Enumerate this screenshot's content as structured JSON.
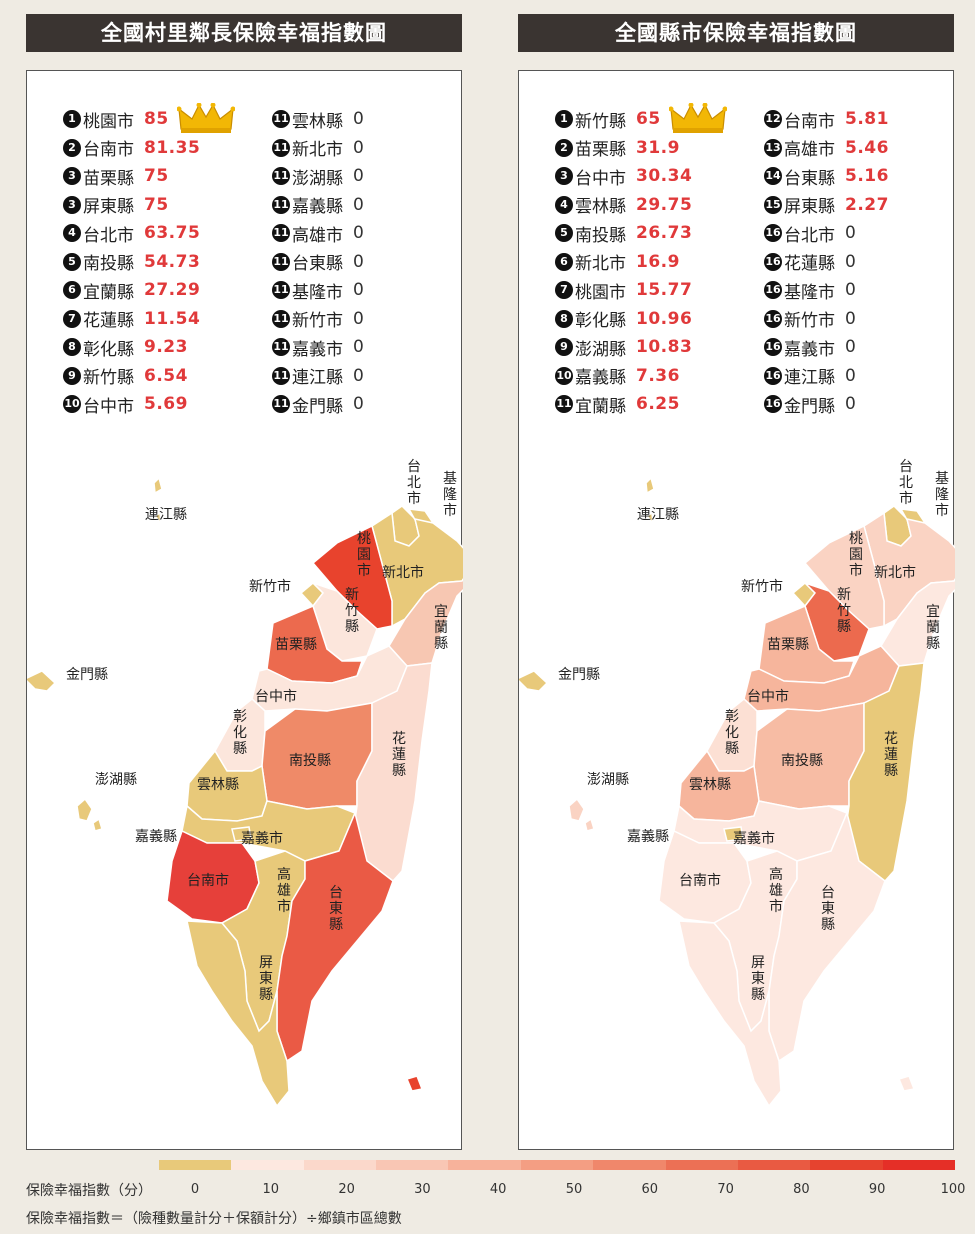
{
  "left": {
    "title": "全國村里鄰長保險幸福指數圖",
    "col1": [
      {
        "rank": "1",
        "name": "桃園市",
        "value": "85",
        "crown": true
      },
      {
        "rank": "2",
        "name": "台南市",
        "value": "81.35"
      },
      {
        "rank": "3",
        "name": "苗栗縣",
        "value": "75"
      },
      {
        "rank": "3",
        "name": "屏東縣",
        "value": "75"
      },
      {
        "rank": "4",
        "name": "台北市",
        "value": "63.75"
      },
      {
        "rank": "5",
        "name": "南投縣",
        "value": "54.73"
      },
      {
        "rank": "6",
        "name": "宜蘭縣",
        "value": "27.29"
      },
      {
        "rank": "7",
        "name": "花蓮縣",
        "value": "11.54"
      },
      {
        "rank": "8",
        "name": "彰化縣",
        "value": "9.23"
      },
      {
        "rank": "9",
        "name": "新竹縣",
        "value": "6.54"
      },
      {
        "rank": "10",
        "name": "台中市",
        "value": "5.69"
      }
    ],
    "col2": [
      {
        "rank": "11",
        "name": "雲林縣",
        "value": "0"
      },
      {
        "rank": "11",
        "name": "新北市",
        "value": "0"
      },
      {
        "rank": "11",
        "name": "澎湖縣",
        "value": "0"
      },
      {
        "rank": "11",
        "name": "嘉義縣",
        "value": "0"
      },
      {
        "rank": "11",
        "name": "高雄市",
        "value": "0"
      },
      {
        "rank": "11",
        "name": "台東縣",
        "value": "0"
      },
      {
        "rank": "11",
        "name": "基隆市",
        "value": "0"
      },
      {
        "rank": "11",
        "name": "新竹市",
        "value": "0"
      },
      {
        "rank": "11",
        "name": "嘉義市",
        "value": "0"
      },
      {
        "rank": "11",
        "name": "連江縣",
        "value": "0"
      },
      {
        "rank": "11",
        "name": "金門縣",
        "value": "0"
      }
    ]
  },
  "right": {
    "title": "全國縣市保險幸福指數圖",
    "col1": [
      {
        "rank": "1",
        "name": "新竹縣",
        "value": "65",
        "crown": true
      },
      {
        "rank": "2",
        "name": "苗栗縣",
        "value": "31.9"
      },
      {
        "rank": "3",
        "name": "台中市",
        "value": "30.34"
      },
      {
        "rank": "4",
        "name": "雲林縣",
        "value": "29.75"
      },
      {
        "rank": "5",
        "name": "南投縣",
        "value": "26.73"
      },
      {
        "rank": "6",
        "name": "新北市",
        "value": "16.9"
      },
      {
        "rank": "7",
        "name": "桃園市",
        "value": "15.77"
      },
      {
        "rank": "8",
        "name": "彰化縣",
        "value": "10.96"
      },
      {
        "rank": "9",
        "name": "澎湖縣",
        "value": "10.83"
      },
      {
        "rank": "10",
        "name": "嘉義縣",
        "value": "7.36"
      },
      {
        "rank": "11",
        "name": "宜蘭縣",
        "value": "6.25"
      }
    ],
    "col2": [
      {
        "rank": "12",
        "name": "台南市",
        "value": "5.81"
      },
      {
        "rank": "13",
        "name": "高雄市",
        "value": "5.46"
      },
      {
        "rank": "14",
        "name": "台東縣",
        "value": "5.16"
      },
      {
        "rank": "15",
        "name": "屏東縣",
        "value": "2.27"
      },
      {
        "rank": "16",
        "name": "台北市",
        "value": "0"
      },
      {
        "rank": "16",
        "name": "花蓮縣",
        "value": "0"
      },
      {
        "rank": "16",
        "name": "基隆市",
        "value": "0"
      },
      {
        "rank": "16",
        "name": "新竹市",
        "value": "0"
      },
      {
        "rank": "16",
        "name": "嘉義市",
        "value": "0"
      },
      {
        "rank": "16",
        "name": "連江縣",
        "value": "0"
      },
      {
        "rank": "16",
        "name": "金門縣",
        "value": "0"
      }
    ]
  },
  "map_labels": {
    "taipei": "台北市",
    "keelung": "基隆市",
    "lienchiang": "連江縣",
    "taoyuan": "桃園市",
    "newtaipei": "新北市",
    "hsinchucity": "新竹市",
    "hsinchucounty": "新竹縣",
    "yilan": "宜蘭縣",
    "miaoli": "苗栗縣",
    "kinmen": "金門縣",
    "taichung": "台中市",
    "changhua": "彰化縣",
    "nantou": "南投縣",
    "hualien": "花蓮縣",
    "penghu": "澎湖縣",
    "yunlin": "雲林縣",
    "chiayicounty": "嘉義縣",
    "chiayicity": "嘉義市",
    "tainan": "台南市",
    "kaohsiung": "高雄市",
    "taitung": "台東縣",
    "pingtung": "屏東縣"
  },
  "left_map_colors": {
    "taipei": "#e8c97a",
    "keelung": "#e8c97a",
    "newtaipei": "#e8c97a",
    "taoyuan": "#e8432d",
    "hsinchucity": "#e8c97a",
    "hsinchucounty": "#fce6dc",
    "miaoli": "#ec6a4e",
    "yilan": "#f7c7b2",
    "taichung": "#fce6dc",
    "changhua": "#fce6dc",
    "nantou": "#ef8a68",
    "hualien": "#fbdcd0",
    "yunlin": "#e8c97a",
    "chiayicounty": "#e8c97a",
    "chiayicity": "#e8c97a",
    "tainan": "#e6403a",
    "kaohsiung": "#e8c97a",
    "pingtung": "#e8c97a",
    "taitung": "#ea5a45",
    "penghu": "#e8c97a",
    "kinmen": "#e8c97a",
    "lienchiang": "#e8c97a",
    "islet": "#e8432d"
  },
  "right_map_colors": {
    "taipei": "#e8c97a",
    "keelung": "#e8c97a",
    "newtaipei": "#fad3c3",
    "taoyuan": "#fad3c3",
    "hsinchucity": "#e8c97a",
    "hsinchucounty": "#ec6a4e",
    "miaoli": "#f6b59c",
    "yilan": "#fde8e0",
    "taichung": "#f6b59c",
    "changhua": "#fce0d4",
    "nantou": "#f7bca4",
    "hualien": "#e8c97a",
    "yunlin": "#f6b59c",
    "chiayicounty": "#fde8e0",
    "chiayicity": "#e8c97a",
    "tainan": "#fde8e0",
    "kaohsiung": "#fde8e0",
    "pingtung": "#fde8e0",
    "taitung": "#fde8e0",
    "penghu": "#fad3c3",
    "kinmen": "#e8c97a",
    "lienchiang": "#e8c97a",
    "islet": "#fde8e0"
  },
  "legend": {
    "label": "保險幸福指數（分）",
    "ticks": [
      "0",
      "10",
      "20",
      "30",
      "40",
      "50",
      "60",
      "70",
      "80",
      "90",
      "100"
    ],
    "colors": [
      "#e8c97a",
      "#fde8e0",
      "#fbd8cb",
      "#f9c6b4",
      "#f7b29b",
      "#f49e83",
      "#f0876b",
      "#ec7055",
      "#e95a42",
      "#e6432f",
      "#e52f27"
    ],
    "formula": "保險幸福指數＝（險種數量計分＋保額計分）÷鄉鎮市區總數"
  },
  "colors": {
    "highlight": "#e0393a",
    "title_bg": "#3a3431",
    "crown": "#f2b705"
  }
}
